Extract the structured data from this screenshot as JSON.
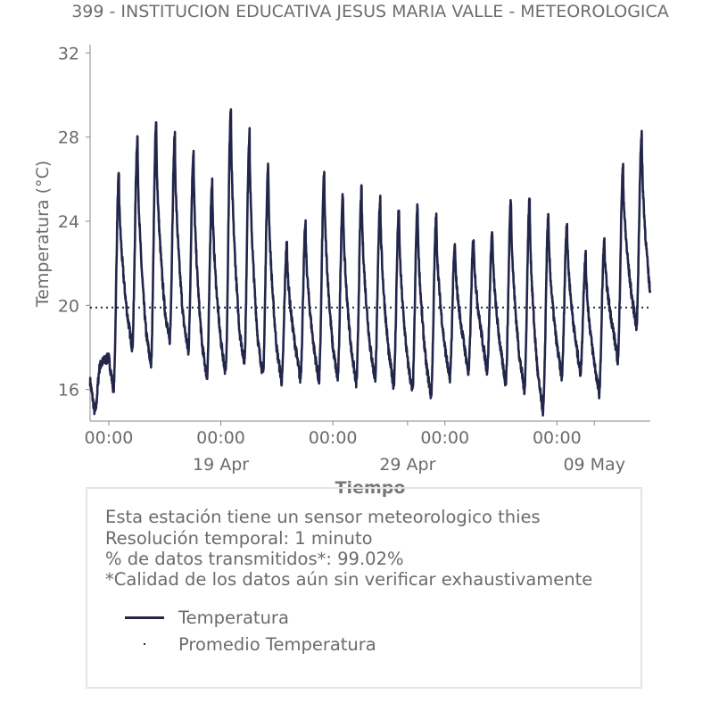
{
  "title": "399 - INSTITUCION EDUCATIVA JESUS MARIA VALLE - METEOROLOGICA",
  "chart_data": {
    "type": "line",
    "xlabel": "Tiempo",
    "ylabel": "Temperatura (°C)",
    "ylim": [
      14.5,
      32.4
    ],
    "yticks": [
      16,
      20,
      24,
      28,
      32
    ],
    "xlim": [
      "2025-04-12",
      "2025-05-12"
    ],
    "xticks": [
      {
        "time": "2025-04-13 00:00",
        "label": "00:00"
      },
      {
        "time": "2025-04-19 00:00",
        "label": "00:00",
        "sublabel": "19 Apr"
      },
      {
        "time": "2025-04-25 00:00",
        "label": "00:00"
      },
      {
        "time": "2025-04-29 00:00",
        "label": "",
        "sublabel": "29 Apr"
      },
      {
        "time": "2025-05-01 00:00",
        "label": "00:00"
      },
      {
        "time": "2025-05-07 00:00",
        "label": "00:00"
      },
      {
        "time": "2025-05-09 00:00",
        "label": "",
        "sublabel": "09 May"
      }
    ],
    "series": [
      {
        "name": "Temperatura",
        "color": "#23264a",
        "daily_max": [
          17.1,
          26.1,
          28.0,
          28.6,
          28.0,
          27.3,
          25.9,
          29.3,
          28.2,
          26.6,
          22.9,
          23.8,
          26.2,
          25.3,
          25.5,
          25.1,
          24.5,
          24.7,
          24.2,
          22.8,
          23.2,
          23.5,
          25.0,
          25.1,
          24.2,
          23.9,
          22.4,
          23.0,
          26.5,
          28.2
        ],
        "daily_min": [
          14.9,
          16.0,
          18.0,
          17.2,
          18.3,
          17.8,
          16.6,
          16.8,
          17.3,
          16.7,
          16.4,
          16.5,
          16.4,
          16.5,
          16.3,
          16.5,
          16.2,
          15.9,
          15.7,
          16.5,
          16.8,
          16.9,
          16.3,
          16.0,
          15.0,
          16.6,
          16.8,
          15.8,
          17.4,
          19.0
        ],
        "peak_days": [
          "Apr 12",
          "Apr 13",
          "Apr 14",
          "Apr 15",
          "Apr 16",
          "Apr 17",
          "Apr 18",
          "Apr 19",
          "Apr 20",
          "Apr 21",
          "Apr 22",
          "Apr 23",
          "Apr 24",
          "Apr 25",
          "Apr 26",
          "Apr 27",
          "Apr 28",
          "Apr 29",
          "Apr 30",
          "May 01",
          "May 02",
          "May 03",
          "May 04",
          "May 05",
          "May 06",
          "May 07",
          "May 08",
          "May 09",
          "May 10",
          "May 11"
        ]
      },
      {
        "name": "Promedio Temperatura",
        "color": "#23264a",
        "style": "dotted",
        "value": 19.9
      }
    ],
    "grid": false
  },
  "info": {
    "line1": "Esta estación tiene un sensor meteorologico thies",
    "line2": "Resolución temporal: 1 minuto",
    "line3": "% de datos transmitidos*: 99.02%",
    "line4": "*Calidad de los datos aún sin verificar exhaustivamente"
  },
  "legend": {
    "item1": "Temperatura",
    "item2": "Promedio Temperatura"
  }
}
